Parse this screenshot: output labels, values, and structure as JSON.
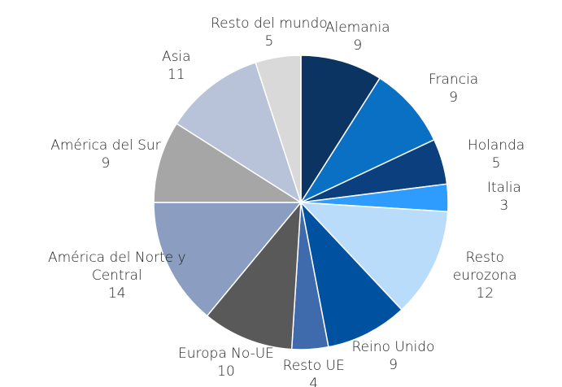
{
  "chart_data": {
    "type": "pie",
    "categories": [
      "Alemania",
      "Francia",
      "Holanda",
      "Italia",
      "Resto eurozona",
      "Reino Unido",
      "Resto UE",
      "Europa No-UE",
      "América del Norte y Central",
      "América del Sur",
      "Asia",
      "Resto del mundo"
    ],
    "values": [
      9,
      9,
      5,
      3,
      12,
      9,
      4,
      10,
      14,
      9,
      11,
      5
    ],
    "colors": [
      "#0b3463",
      "#0a70c4",
      "#0b3f7e",
      "#2e9cff",
      "#b9dcfa",
      "#00519f",
      "#3f6aac",
      "#595959",
      "#8b9dc0",
      "#a6a6a6",
      "#b8c2d8",
      "#d9d9d9"
    ]
  }
}
